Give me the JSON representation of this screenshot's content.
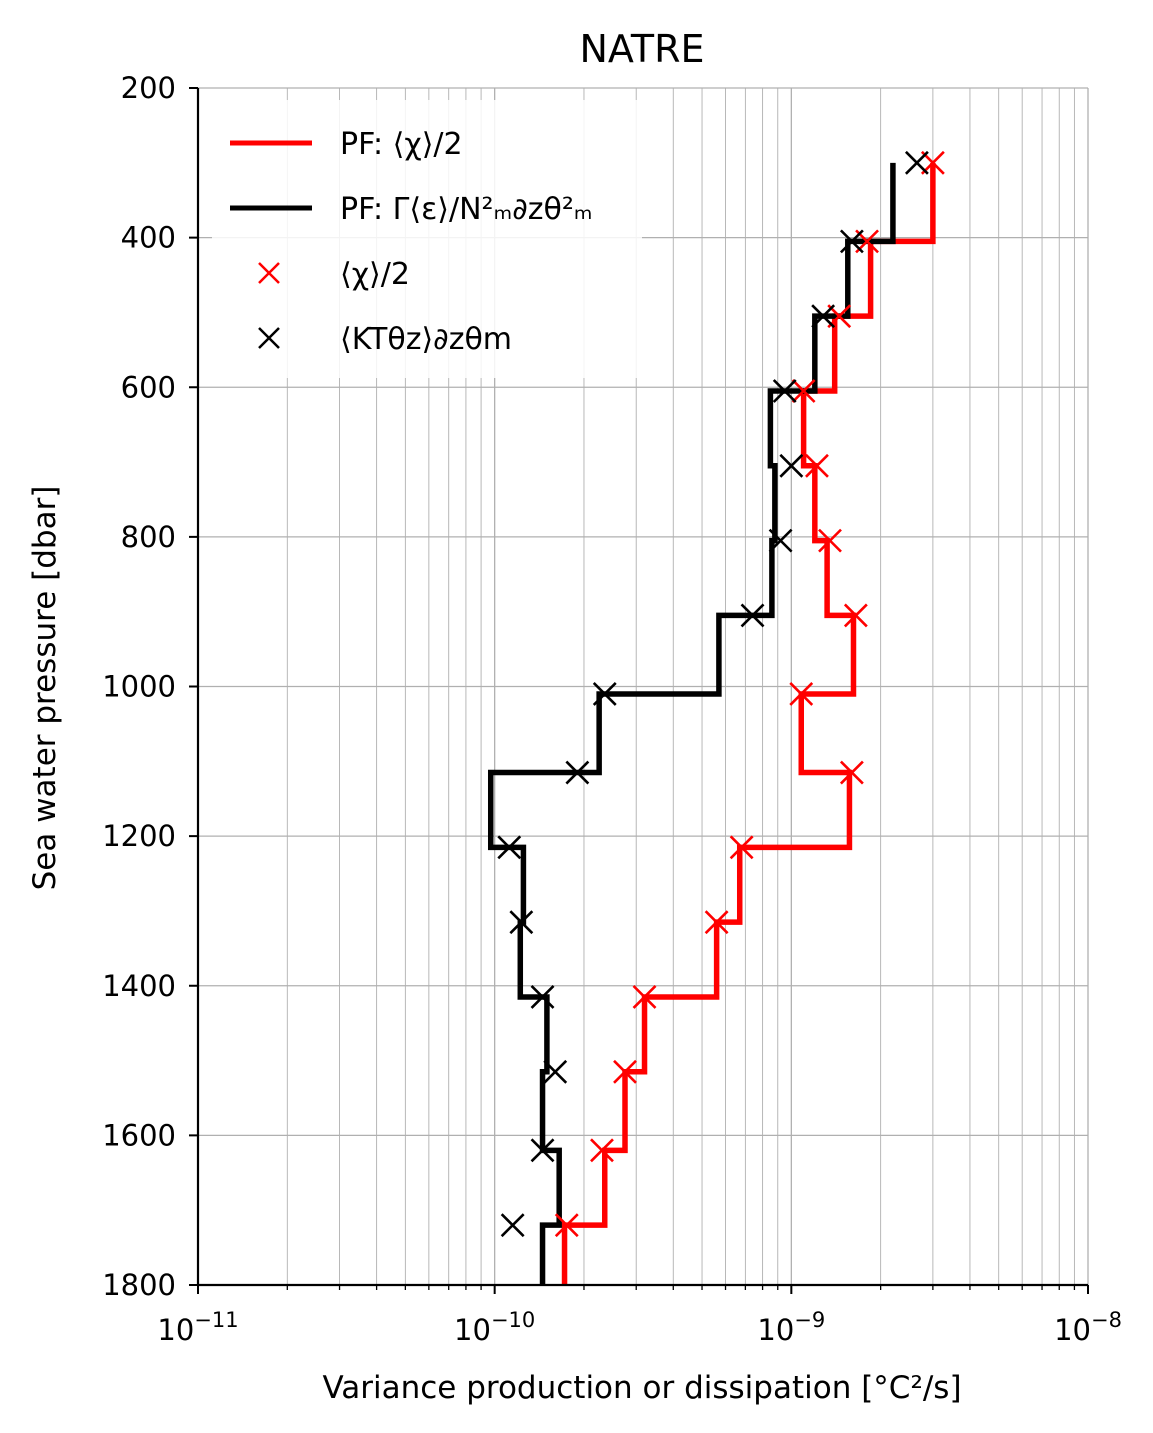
{
  "chart_data": {
    "type": "line",
    "title": "NATRE",
    "xlabel": "Variance production or dissipation [°C²/s]",
    "ylabel": "Sea water pressure [dbar]",
    "xscale": "log",
    "xlim": [
      1e-11,
      1e-08
    ],
    "ylim": [
      1800,
      200
    ],
    "y_inverted": true,
    "grid": "both major and minor",
    "legend_position": "top-left",
    "x_tick_labels": [
      "10−11",
      "10−10",
      "10−9",
      "10−8"
    ],
    "y_tick_labels": [
      "200",
      "400",
      "600",
      "800",
      "1000",
      "1200",
      "1400",
      "1600",
      "1800"
    ],
    "colors": {
      "red": "#ff0000",
      "black": "#000000"
    },
    "series": [
      {
        "name": "PF: ⟨χ⟩/2",
        "style": "step-line",
        "color": "#ff0000",
        "segments": [
          {
            "p_top": 300,
            "p_bot": 405,
            "value": 3e-09
          },
          {
            "p_top": 405,
            "p_bot": 505,
            "value": 1.85e-09
          },
          {
            "p_top": 505,
            "p_bot": 605,
            "value": 1.4e-09
          },
          {
            "p_top": 605,
            "p_bot": 705,
            "value": 1.1e-09
          },
          {
            "p_top": 705,
            "p_bot": 805,
            "value": 1.2e-09
          },
          {
            "p_top": 805,
            "p_bot": 905,
            "value": 1.32e-09
          },
          {
            "p_top": 905,
            "p_bot": 1010,
            "value": 1.62e-09
          },
          {
            "p_top": 1010,
            "p_bot": 1115,
            "value": 1.08e-09
          },
          {
            "p_top": 1115,
            "p_bot": 1215,
            "value": 1.57e-09
          },
          {
            "p_top": 1215,
            "p_bot": 1315,
            "value": 6.7e-10
          },
          {
            "p_top": 1315,
            "p_bot": 1415,
            "value": 5.6e-10
          },
          {
            "p_top": 1415,
            "p_bot": 1515,
            "value": 3.2e-10
          },
          {
            "p_top": 1515,
            "p_bot": 1620,
            "value": 2.75e-10
          },
          {
            "p_top": 1620,
            "p_bot": 1720,
            "value": 2.35e-10
          },
          {
            "p_top": 1720,
            "p_bot": 1800,
            "value": 1.72e-10
          }
        ]
      },
      {
        "name": "PF: Γ⟨ε⟩/N²ₘ∂zθ²ₘ",
        "style": "step-line",
        "color": "#000000",
        "segments": [
          {
            "p_top": 300,
            "p_bot": 405,
            "value": 2.2e-09
          },
          {
            "p_top": 405,
            "p_bot": 505,
            "value": 1.55e-09
          },
          {
            "p_top": 505,
            "p_bot": 605,
            "value": 1.2e-09
          },
          {
            "p_top": 605,
            "p_bot": 705,
            "value": 8.5e-10
          },
          {
            "p_top": 705,
            "p_bot": 805,
            "value": 8.8e-10
          },
          {
            "p_top": 805,
            "p_bot": 905,
            "value": 8.6e-10
          },
          {
            "p_top": 905,
            "p_bot": 1010,
            "value": 5.7e-10
          },
          {
            "p_top": 1010,
            "p_bot": 1115,
            "value": 2.25e-10
          },
          {
            "p_top": 1115,
            "p_bot": 1215,
            "value": 9.7e-11
          },
          {
            "p_top": 1215,
            "p_bot": 1315,
            "value": 1.25e-10
          },
          {
            "p_top": 1315,
            "p_bot": 1415,
            "value": 1.22e-10
          },
          {
            "p_top": 1415,
            "p_bot": 1515,
            "value": 1.5e-10
          },
          {
            "p_top": 1515,
            "p_bot": 1620,
            "value": 1.45e-10
          },
          {
            "p_top": 1620,
            "p_bot": 1720,
            "value": 1.65e-10
          },
          {
            "p_top": 1720,
            "p_bot": 1800,
            "value": 1.45e-10
          }
        ]
      },
      {
        "name": "⟨χ⟩/2",
        "style": "markers-x",
        "color": "#ff0000",
        "points": [
          {
            "x": 3e-09,
            "p": 300
          },
          {
            "x": 1.8e-09,
            "p": 405
          },
          {
            "x": 1.45e-09,
            "p": 505
          },
          {
            "x": 1.1e-09,
            "p": 605
          },
          {
            "x": 1.22e-09,
            "p": 705
          },
          {
            "x": 1.35e-09,
            "p": 805
          },
          {
            "x": 1.65e-09,
            "p": 905
          },
          {
            "x": 1.08e-09,
            "p": 1010
          },
          {
            "x": 1.6e-09,
            "p": 1115
          },
          {
            "x": 6.8e-10,
            "p": 1215
          },
          {
            "x": 5.6e-10,
            "p": 1315
          },
          {
            "x": 3.2e-10,
            "p": 1415
          },
          {
            "x": 2.75e-10,
            "p": 1515
          },
          {
            "x": 2.3e-10,
            "p": 1620
          },
          {
            "x": 1.75e-10,
            "p": 1720
          }
        ]
      },
      {
        "name": "⟨KTθz⟩∂zθm",
        "style": "markers-x",
        "color": "#000000",
        "points": [
          {
            "x": 2.65e-09,
            "p": 300
          },
          {
            "x": 1.6e-09,
            "p": 405
          },
          {
            "x": 1.28e-09,
            "p": 505
          },
          {
            "x": 9.5e-10,
            "p": 605
          },
          {
            "x": 1e-09,
            "p": 705
          },
          {
            "x": 9.2e-10,
            "p": 805
          },
          {
            "x": 7.4e-10,
            "p": 905
          },
          {
            "x": 2.35e-10,
            "p": 1010
          },
          {
            "x": 1.9e-10,
            "p": 1115
          },
          {
            "x": 1.12e-10,
            "p": 1215
          },
          {
            "x": 1.23e-10,
            "p": 1315
          },
          {
            "x": 1.45e-10,
            "p": 1415
          },
          {
            "x": 1.6e-10,
            "p": 1515
          },
          {
            "x": 1.45e-10,
            "p": 1620
          },
          {
            "x": 1.15e-10,
            "p": 1720
          }
        ]
      }
    ]
  }
}
